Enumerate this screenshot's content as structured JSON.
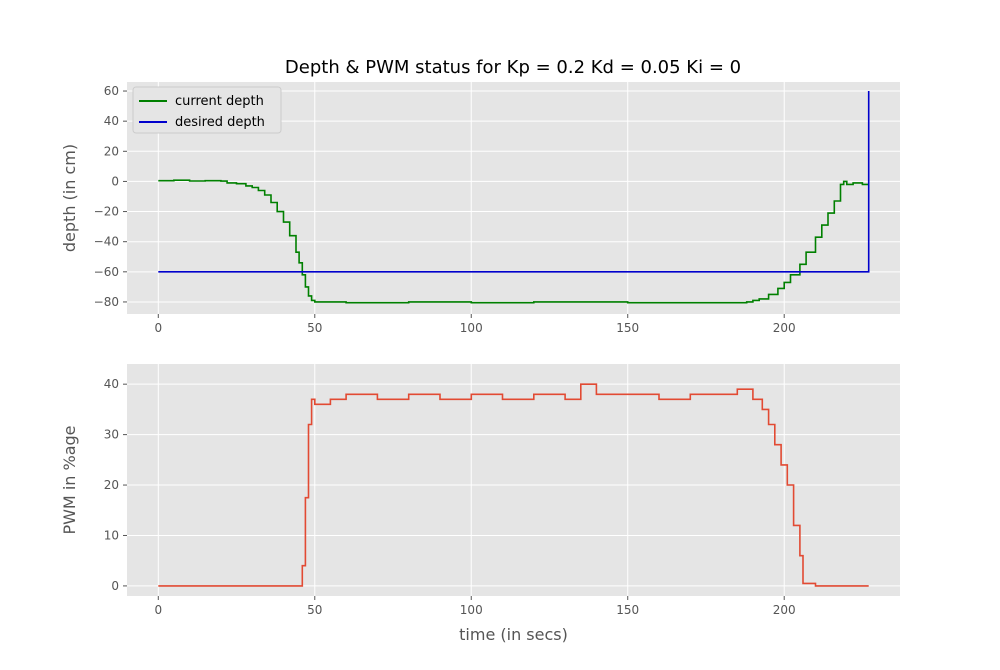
{
  "figure": {
    "title": "Depth & PWM status for Kp = 0.2 Kd = 0.05 Ki = 0",
    "background": "#ffffff",
    "panel_background": "#e5e5e5",
    "grid_color": "#ffffff"
  },
  "chart_data": [
    {
      "type": "line",
      "title": "Depth & PWM status for Kp = 0.2 Kd = 0.05 Ki = 0",
      "xlabel": "",
      "ylabel": "depth (in cm)",
      "xlim": [
        -10,
        237
      ],
      "ylim": [
        -88,
        66
      ],
      "xticks": [
        0,
        50,
        100,
        150,
        200
      ],
      "yticks": [
        60,
        40,
        20,
        0,
        -20,
        -40,
        -60,
        -80
      ],
      "grid": true,
      "legend": "top-left",
      "series": [
        {
          "name": "current depth",
          "color": "#008000",
          "x": [
            0,
            5,
            10,
            15,
            20,
            22,
            25,
            28,
            30,
            32,
            34,
            36,
            38,
            40,
            42,
            44,
            45,
            46,
            47,
            48,
            49,
            50,
            55,
            60,
            80,
            100,
            120,
            150,
            180,
            185,
            188,
            190,
            192,
            195,
            198,
            200,
            202,
            205,
            207,
            210,
            212,
            214,
            216,
            218,
            219,
            220,
            222,
            225,
            227
          ],
          "y": [
            0.5,
            0.8,
            0.3,
            0.5,
            0.2,
            -1,
            -1.5,
            -3,
            -4,
            -6,
            -9,
            -14,
            -20,
            -27,
            -36,
            -47,
            -54,
            -62,
            -70,
            -76,
            -79,
            -80,
            -80,
            -80.5,
            -80,
            -80.5,
            -80,
            -80.5,
            -80.5,
            -80.5,
            -80,
            -79,
            -78,
            -75,
            -71,
            -67,
            -62,
            -55,
            -47,
            -37,
            -29,
            -21,
            -13,
            -2,
            0,
            -2,
            -1,
            -2,
            -1.5
          ]
        },
        {
          "name": "desired depth",
          "color": "#0000cc",
          "x": [
            0,
            227,
            227
          ],
          "y": [
            -60,
            -60,
            60
          ]
        }
      ]
    },
    {
      "type": "line",
      "title": "",
      "xlabel": "time (in secs)",
      "ylabel": "PWM in %age",
      "xlim": [
        -10,
        237
      ],
      "ylim": [
        -2,
        44
      ],
      "xticks": [
        0,
        50,
        100,
        150,
        200
      ],
      "yticks": [
        40,
        30,
        20,
        10,
        0
      ],
      "grid": true,
      "series": [
        {
          "name": "",
          "color": "#e24a33",
          "x": [
            0,
            45,
            46,
            47,
            48,
            49,
            50,
            55,
            60,
            70,
            80,
            90,
            100,
            110,
            120,
            130,
            135,
            140,
            150,
            160,
            170,
            180,
            185,
            190,
            193,
            195,
            197,
            199,
            201,
            203,
            205,
            206,
            210,
            227
          ],
          "y": [
            0,
            0,
            4,
            17.5,
            32,
            37,
            36,
            37,
            38,
            37,
            38,
            37,
            38,
            37,
            38,
            37,
            40,
            38,
            38,
            37,
            38,
            38,
            39,
            37,
            35,
            32,
            28,
            24,
            20,
            12,
            6,
            0.5,
            0,
            0
          ]
        }
      ]
    }
  ]
}
